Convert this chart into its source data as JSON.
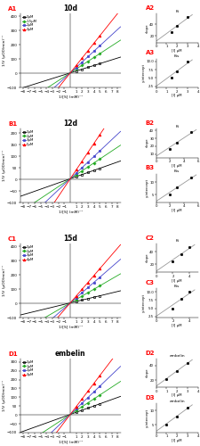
{
  "rows": [
    {
      "label1": "A1",
      "label2": "A2",
      "label3": "A3",
      "title": "10d",
      "legend": [
        "0μM",
        "1.5μM",
        "2μM",
        "3μM"
      ],
      "colors": [
        "black",
        "#22aa22",
        "#4444cc",
        "red"
      ],
      "lw_xlim": [
        -8.5,
        8.5
      ],
      "lw_ylim": [
        -100,
        420
      ],
      "lw_ylabel": "1/V (μOD/min)⁻¹",
      "lw_xlabel": "1/[S] (mM)⁻¹",
      "slopes": [
        13,
        27,
        38,
        52
      ],
      "intercepts": [
        3,
        3,
        3,
        3
      ],
      "data_x": [
        1,
        2,
        3,
        4,
        5
      ],
      "ki_title": "Ki",
      "kis_title": "Kis",
      "ki_conc": [
        0,
        1.5,
        2,
        3
      ],
      "ki_slope_vals": [
        13,
        27,
        38,
        52
      ],
      "kis_intercept_vals": [
        3,
        5,
        7,
        10
      ],
      "small_xlim": [
        0,
        4
      ],
      "small_xlabel": "[I] μM"
    },
    {
      "label1": "B1",
      "label2": "B2",
      "label3": "B3",
      "title": "12d",
      "legend": [
        "0μM",
        "2μM",
        "3μM",
        "5μM"
      ],
      "colors": [
        "black",
        "#22aa22",
        "#4444cc",
        "red"
      ],
      "lw_xlim": [
        -8.5,
        8.5
      ],
      "lw_ylim": [
        -100,
        220
      ],
      "lw_ylabel": "1/V (μOD/min)⁻¹",
      "lw_xlabel": "1/[S] (mM)⁻¹",
      "slopes": [
        9,
        17,
        24,
        38
      ],
      "intercepts": [
        3,
        3,
        3,
        3
      ],
      "data_x": [
        1,
        2,
        3,
        4,
        5
      ],
      "ki_title": "Ki",
      "kis_title": "Kis",
      "ki_conc": [
        0,
        2,
        3,
        5
      ],
      "ki_slope_vals": [
        9,
        17,
        24,
        38
      ],
      "kis_intercept_vals": [
        3,
        5,
        8,
        12
      ],
      "small_xlim": [
        0,
        6
      ],
      "small_xlabel": "[I] μM"
    },
    {
      "label1": "C1",
      "label2": "C2",
      "label3": "C3",
      "title": "15d",
      "legend": [
        "0μM",
        "2μM",
        "3μM",
        "4μM"
      ],
      "colors": [
        "black",
        "#22aa22",
        "#4444cc",
        "red"
      ],
      "lw_xlim": [
        -8.5,
        8.5
      ],
      "lw_ylim": [
        -100,
        420
      ],
      "lw_ylabel": "1/V (μOD/min)⁻¹",
      "lw_xlabel": "1/[S] (mM)⁻¹",
      "slopes": [
        10,
        24,
        36,
        48
      ],
      "intercepts": [
        3,
        3,
        3,
        3
      ],
      "data_x": [
        1,
        2,
        3,
        4,
        5
      ],
      "ki_title": "Ki",
      "kis_title": "Kis",
      "ki_conc": [
        0,
        2,
        3,
        4
      ],
      "ki_slope_vals": [
        10,
        24,
        36,
        48
      ],
      "kis_intercept_vals": [
        3,
        5,
        8,
        10
      ],
      "small_xlim": [
        0,
        5
      ],
      "small_xlabel": "[I] μM"
    },
    {
      "label1": "D1",
      "label2": "D2",
      "label3": "D3",
      "title": "embelin",
      "legend": [
        "0μM",
        "1μM",
        "2μM",
        "3μM"
      ],
      "colors": [
        "black",
        "#22aa22",
        "#4444cc",
        "red"
      ],
      "lw_xlim": [
        -8.5,
        8.5
      ],
      "lw_ylim": [
        -100,
        320
      ],
      "lw_ylabel": "1/V (μOD/min)⁻¹",
      "lw_xlabel": "1/[S] (mM)⁻¹",
      "slopes": [
        12,
        22,
        32,
        44
      ],
      "intercepts": [
        3,
        3,
        3,
        3
      ],
      "data_x": [
        1,
        2,
        3,
        4,
        5
      ],
      "ki_title": "embelin",
      "kis_title": "embelin",
      "ki_conc": [
        0,
        1,
        2,
        3
      ],
      "ki_slope_vals": [
        12,
        22,
        32,
        44
      ],
      "kis_intercept_vals": [
        3,
        5,
        8,
        11
      ],
      "small_xlim": [
        0,
        4
      ],
      "small_xlabel": "[I] μM"
    }
  ],
  "bg_color": "#ffffff",
  "markers_lw": [
    "s",
    "P",
    "s",
    "^"
  ],
  "markers_fill": [
    false,
    true,
    true,
    true
  ]
}
